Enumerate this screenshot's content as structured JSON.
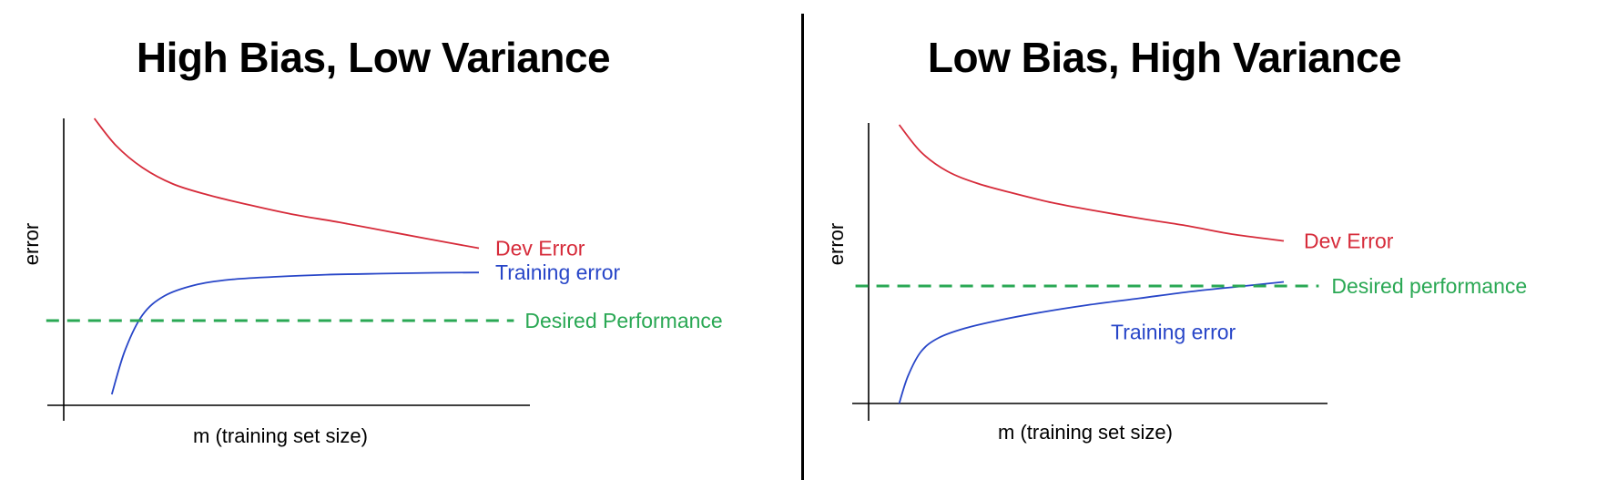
{
  "colors": {
    "dev_error": "#d62b3a",
    "training_error": "#2846c8",
    "desired_performance": "#2aa854",
    "axis": "#000000"
  },
  "chart_data": [
    {
      "type": "line",
      "title": "High Bias, Low Variance",
      "xlabel": "m (training set size)",
      "ylabel": "error",
      "xlim": [
        0,
        10
      ],
      "ylim": [
        0,
        10
      ],
      "grid": false,
      "series": [
        {
          "name": "Dev Error",
          "color": "#d62b3a",
          "x": [
            0.7,
            1.2,
            1.8,
            2.5,
            3.3,
            4.2,
            5.2,
            6.3,
            7.3,
            8.3,
            9.5
          ],
          "y": [
            10.5,
            9.5,
            8.7,
            8.1,
            7.7,
            7.35,
            7.0,
            6.7,
            6.4,
            6.1,
            5.75
          ]
        },
        {
          "name": "Training error",
          "color": "#2846c8",
          "x": [
            1.1,
            1.4,
            1.8,
            2.3,
            3.0,
            3.8,
            4.8,
            6.0,
            7.3,
            8.5,
            9.5
          ],
          "y": [
            0.4,
            2.0,
            3.3,
            4.0,
            4.4,
            4.6,
            4.7,
            4.78,
            4.82,
            4.85,
            4.86
          ]
        },
        {
          "name": "Desired Performance",
          "color": "#2aa854",
          "style": "dashed",
          "x": [
            -0.4,
            10.3
          ],
          "y": [
            3.1,
            3.1
          ]
        }
      ]
    },
    {
      "type": "line",
      "title": "Low Bias, High Variance",
      "xlabel": "m (training set size)",
      "ylabel": "error",
      "xlim": [
        0,
        10
      ],
      "ylim": [
        0,
        10
      ],
      "grid": false,
      "series": [
        {
          "name": "Dev Error",
          "color": "#d62b3a",
          "x": [
            0.7,
            1.2,
            1.8,
            2.5,
            3.3,
            4.2,
            5.2,
            6.3,
            7.3,
            8.3,
            9.5
          ],
          "y": [
            10.2,
            9.2,
            8.5,
            8.05,
            7.7,
            7.35,
            7.05,
            6.75,
            6.5,
            6.2,
            5.95
          ]
        },
        {
          "name": "Training error",
          "color": "#2846c8",
          "x": [
            0.7,
            0.9,
            1.2,
            1.6,
            2.2,
            3.0,
            4.0,
            5.0,
            6.2,
            7.4,
            8.6,
            9.5
          ],
          "y": [
            0.0,
            1.0,
            1.9,
            2.4,
            2.75,
            3.05,
            3.35,
            3.6,
            3.85,
            4.1,
            4.3,
            4.45
          ]
        },
        {
          "name": "Desired performance",
          "color": "#2aa854",
          "style": "dashed",
          "x": [
            -0.3,
            10.3
          ],
          "y": [
            4.3,
            4.3
          ]
        }
      ]
    }
  ]
}
